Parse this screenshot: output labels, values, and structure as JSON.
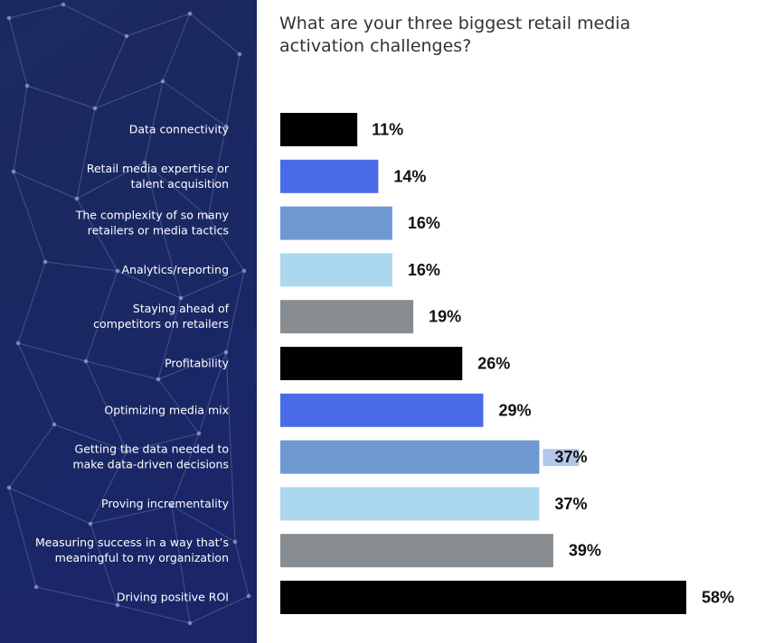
{
  "title": "What are your three biggest retail media activation challenges?",
  "colors": {
    "panel_top": "#1b2a5e",
    "panel_bottom": "#1a2668",
    "label_text": "#ffffff",
    "muted_label_text": "#c9d0e6",
    "highlight": "#b3c6ec"
  },
  "chart_data": {
    "type": "bar",
    "orientation": "horizontal",
    "categories": [
      [
        "Data connectivity"
      ],
      [
        "Retail media expertise or",
        "talent acquisition"
      ],
      [
        "The complexity of so many",
        "retailers or media tactics"
      ],
      [
        "Analytics/reporting"
      ],
      [
        "Staying ahead of",
        "competitors on retailers"
      ],
      [
        "Profitability"
      ],
      [
        "Optimizing media mix"
      ],
      [
        "Getting the data needed to",
        "make data-driven decisions"
      ],
      [
        "Proving incrementality"
      ],
      [
        "Measuring success in a way that’s",
        "meaningful to my organization"
      ],
      [
        "Driving positive ROI"
      ]
    ],
    "values": [
      11,
      14,
      16,
      16,
      19,
      26,
      29,
      37,
      37,
      39,
      58
    ],
    "value_labels": [
      "11%",
      "14%",
      "16%",
      "16%",
      "19%",
      "26%",
      "29%",
      "37%",
      "37%",
      "39%",
      "58%"
    ],
    "bar_colors": [
      "#000000",
      "#4a6be8",
      "#6e98d0",
      "#acd8ef",
      "#878d91",
      "#000000",
      "#4a6be8",
      "#6e98d0",
      "#acd8ef",
      "#878d91",
      "#000000"
    ],
    "muted_labels": [
      5
    ],
    "highlighted_value_labels": [
      7
    ],
    "xlim": [
      0,
      58
    ]
  }
}
